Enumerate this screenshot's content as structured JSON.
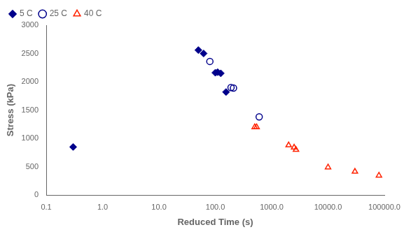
{
  "chart_data": {
    "type": "scatter",
    "xlabel": "Reduced Time (s)",
    "ylabel": "Stress (kPa)",
    "log": "x",
    "xlim": [
      0.1,
      100000.0
    ],
    "ylim": [
      0,
      3000
    ],
    "xticks": [
      0.1,
      {
        "value": 1.0,
        "label": "1.0"
      },
      {
        "value": 10.0,
        "label": "10.0"
      },
      {
        "value": 100.0,
        "label": "100.0"
      },
      {
        "value": 1000.0,
        "label": "1000.0"
      },
      {
        "value": 10000.0,
        "label": "10000.0"
      },
      {
        "value": 100000.0,
        "label": "100000.0"
      }
    ],
    "yticks": [
      0,
      500,
      1000,
      1500,
      2000,
      2500,
      3000
    ],
    "grid": false,
    "legend": "upper left",
    "series": [
      {
        "name": "5 C",
        "color": "#00008B",
        "marker": "diamond",
        "x": [
          0.3,
          50,
          62,
          100,
          110,
          125,
          155
        ],
        "values": [
          850,
          2560,
          2500,
          2160,
          2170,
          2150,
          1820
        ]
      },
      {
        "name": "25 C",
        "color": "#00008B",
        "marker": "open circle",
        "x": [
          80,
          190,
          210,
          600
        ],
        "values": [
          2360,
          1900,
          1890,
          1380
        ]
      },
      {
        "name": "40 C",
        "color": "#FF2200",
        "marker": "open triangle",
        "x": [
          500,
          540,
          2000,
          2500,
          2700,
          10000,
          30000,
          80000
        ],
        "values": [
          1200,
          1200,
          880,
          840,
          800,
          490,
          415,
          345
        ]
      }
    ]
  }
}
